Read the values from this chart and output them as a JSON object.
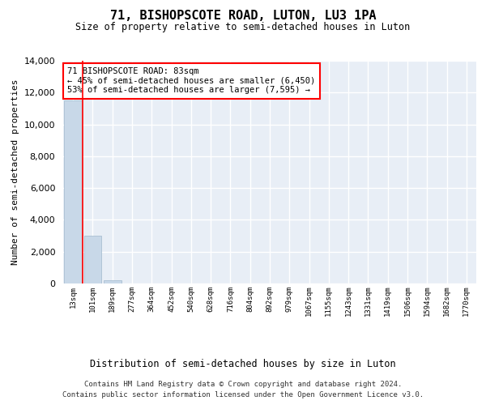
{
  "title": "71, BISHOPSCOTE ROAD, LUTON, LU3 1PA",
  "subtitle": "Size of property relative to semi-detached houses in Luton",
  "xlabel": "Distribution of semi-detached houses by size in Luton",
  "ylabel": "Number of semi-detached properties",
  "categories": [
    "13sqm",
    "101sqm",
    "189sqm",
    "277sqm",
    "364sqm",
    "452sqm",
    "540sqm",
    "628sqm",
    "716sqm",
    "804sqm",
    "892sqm",
    "979sqm",
    "1067sqm",
    "1155sqm",
    "1243sqm",
    "1331sqm",
    "1419sqm",
    "1506sqm",
    "1594sqm",
    "1682sqm",
    "1770sqm"
  ],
  "values": [
    11500,
    3000,
    200,
    15,
    5,
    3,
    2,
    2,
    1,
    1,
    1,
    1,
    0,
    0,
    0,
    0,
    0,
    0,
    0,
    0,
    0
  ],
  "bar_color": "#c8d8e8",
  "bar_edgecolor": "#a0b8cc",
  "redline_index": 1,
  "property_size": 83,
  "pct_smaller": 45,
  "count_smaller": "6,450",
  "pct_larger": 53,
  "count_larger": "7,595",
  "annotation_text_line1": "71 BISHOPSCOTE ROAD: 83sqm",
  "annotation_text_line2": "← 45% of semi-detached houses are smaller (6,450)",
  "annotation_text_line3": "53% of semi-detached houses are larger (7,595) →",
  "ylim": [
    0,
    14000
  ],
  "yticks": [
    0,
    2000,
    4000,
    6000,
    8000,
    10000,
    12000,
    14000
  ],
  "axes_bg_color": "#e8eef6",
  "grid_color": "#ffffff",
  "footer_line1": "Contains HM Land Registry data © Crown copyright and database right 2024.",
  "footer_line2": "Contains public sector information licensed under the Open Government Licence v3.0."
}
